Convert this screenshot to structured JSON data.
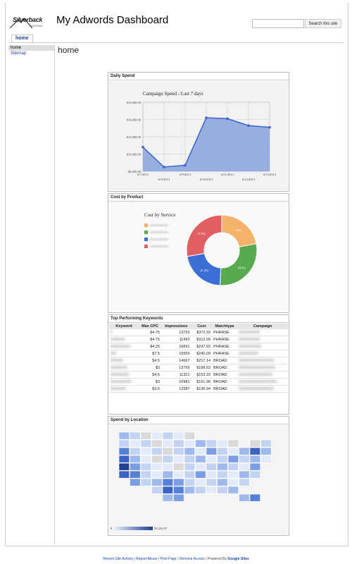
{
  "header": {
    "logo_text": "Silverback",
    "logo_sub": "HOSTING",
    "site_title": "My Adwords Dashboard",
    "search_placeholder": "",
    "search_button": "Search this site"
  },
  "tabs": [
    {
      "label": "home"
    }
  ],
  "sidebar": {
    "items": [
      {
        "label": "home"
      },
      {
        "label": "Sitemap"
      }
    ]
  },
  "page_title": "home",
  "gadgets": {
    "daily_spend": {
      "title": "Daily Spend"
    },
    "cost_by_product": {
      "title": "Cost by Product"
    },
    "top_keywords": {
      "title": "Top Performing Keywords"
    },
    "spend_by_location": {
      "title": "Spend by Location"
    }
  },
  "chart_data": [
    {
      "type": "area",
      "title": "Campaign Spend - Last 7 days",
      "x": [
        "6/7/2013",
        "6/8/2013",
        "6/9/2013",
        "6/10/2013",
        "6/11/2013",
        "6/12/2013",
        "6/13/2013"
      ],
      "values": [
        10800,
        8500,
        8700,
        14200,
        14100,
        13300,
        13100
      ],
      "yticks": [
        "$8,000.00",
        "$10,000.00",
        "$12,000.00",
        "$14,000.00",
        "$16,000.00"
      ],
      "ylim": [
        8000,
        16000
      ],
      "color": "#3a64c8",
      "fill": "#8ea6de",
      "grid": true
    },
    {
      "type": "pie",
      "title": "Cost by Service",
      "values": [
        22.0,
        28.8,
        21.4,
        27.8
      ],
      "labels": [
        "22%",
        "28.8%",
        "21.4%",
        "27.8%"
      ],
      "colors": [
        "#f4b26b",
        "#59a94e",
        "#3b6fd6",
        "#df5f63"
      ],
      "legend": "left"
    },
    {
      "type": "heatmap",
      "title": "",
      "scale_min": "0",
      "scale_max": "58,232.07",
      "colors": {
        "low": "#e3ebfa",
        "high": "#1f3f8f",
        "none": "#d9d9d9"
      }
    }
  ],
  "keywords": {
    "headers": [
      "Keyword",
      "Max CPC",
      "Impressions",
      "Cost",
      "Matchtype",
      "Campaign"
    ],
    "rows": [
      [
        "$4.75",
        "13733",
        "$372.33",
        "PHRASE"
      ],
      [
        "$4.75",
        "11493",
        "$312.09",
        "PHRASE"
      ],
      [
        "$4.25",
        "10691",
        "$247.92",
        "PHRASE"
      ],
      [
        "$7.5",
        "10556",
        "$240.09",
        "PHRASE"
      ],
      [
        "$4.5",
        "14667",
        "$217.14",
        "BROAD"
      ],
      [
        "$3",
        "12759",
        "$198.63",
        "BROAD"
      ],
      [
        "$4.5",
        "11321",
        "$153.33",
        "BROAD"
      ],
      [
        "$3",
        "10981",
        "$151.96",
        "BROAD"
      ],
      [
        "$3.5",
        "12587",
        "$136.94",
        "BROAD"
      ]
    ]
  },
  "footer": {
    "links": [
      "Recent Site Activity",
      "Report Abuse",
      "Print Page",
      "Remove Access"
    ],
    "powered": "Powered By",
    "brand": "Google Sites"
  }
}
